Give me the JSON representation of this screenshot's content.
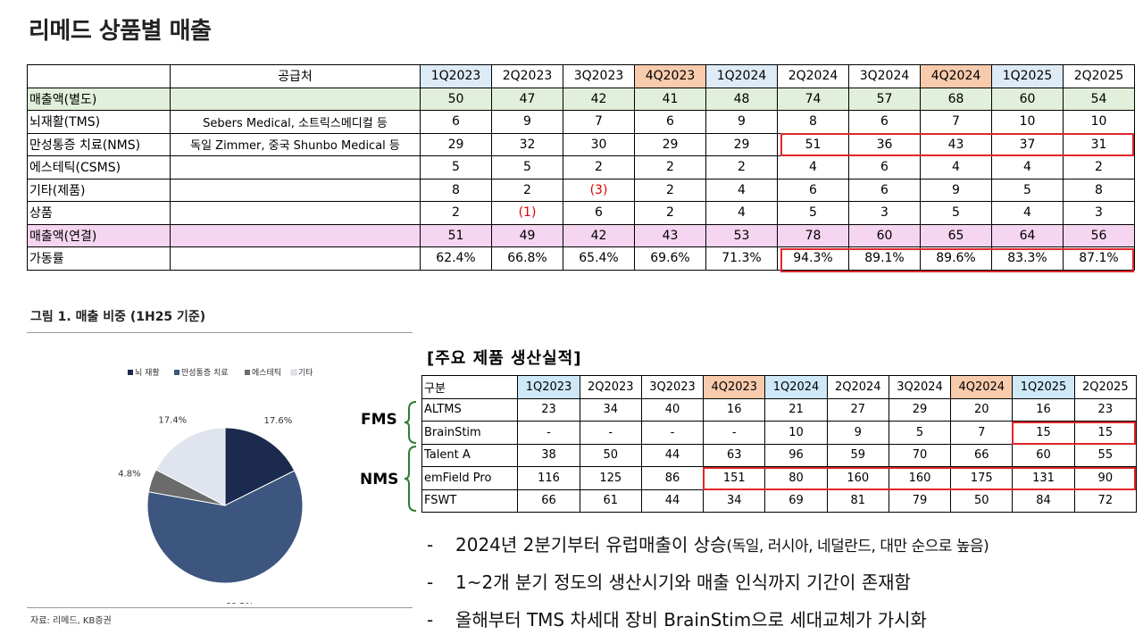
{
  "title": "리메드 상품별 매출",
  "main_table": {
    "header": {
      "label": "",
      "supplier": "공급처",
      "periods": [
        "1Q2023",
        "2Q2023",
        "3Q2023",
        "4Q2023",
        "1Q2024",
        "2Q2024",
        "3Q2024",
        "4Q2024",
        "1Q2025",
        "2Q2025"
      ]
    },
    "rows": [
      {
        "label": "매출액(별도)",
        "supplier": "",
        "values": [
          "50",
          "47",
          "42",
          "41",
          "48",
          "74",
          "57",
          "68",
          "60",
          "54"
        ]
      },
      {
        "label": "뇌재활(TMS)",
        "supplier": "Sebers Medical, 소트릭스메디컬 등",
        "values": [
          "6",
          "9",
          "7",
          "6",
          "9",
          "8",
          "6",
          "7",
          "10",
          "10"
        ]
      },
      {
        "label": "만성통증 치료(NMS)",
        "supplier": "독일 Zimmer, 중국 Shunbo Medical 등",
        "values": [
          "29",
          "32",
          "30",
          "29",
          "29",
          "51",
          "36",
          "43",
          "37",
          "31"
        ]
      },
      {
        "label": "에스테틱(CSMS)",
        "supplier": "",
        "values": [
          "5",
          "5",
          "2",
          "2",
          "2",
          "4",
          "6",
          "4",
          "4",
          "2"
        ]
      },
      {
        "label": "기타(제품)",
        "supplier": "",
        "values": [
          "8",
          "2",
          "(3)",
          "2",
          "4",
          "6",
          "6",
          "9",
          "5",
          "8"
        ]
      },
      {
        "label": "상품",
        "supplier": "",
        "values": [
          "2",
          "(1)",
          "6",
          "2",
          "4",
          "5",
          "3",
          "5",
          "4",
          "3"
        ]
      },
      {
        "label": "매출액(연결)",
        "supplier": "",
        "values": [
          "51",
          "49",
          "42",
          "43",
          "53",
          "78",
          "60",
          "65",
          "64",
          "56"
        ]
      },
      {
        "label": "가동률",
        "supplier": "",
        "values": [
          "62.4%",
          "66.8%",
          "65.4%",
          "69.6%",
          "71.3%",
          "94.3%",
          "89.1%",
          "89.6%",
          "83.3%",
          "87.1%"
        ]
      }
    ]
  },
  "figure": {
    "title": "그림 1. 매출 비중 (1H25 기준)",
    "source": "자료: 리메드, KB증권"
  },
  "chart_data": {
    "type": "pie",
    "title": "그림 1. 매출 비중 (1H25 기준)",
    "legend_position": "top",
    "series": [
      {
        "name": "뇌 재활",
        "value": 17.6,
        "label": "17.6%",
        "color": "#1b2a4e"
      },
      {
        "name": "만성통증 치료",
        "value": 60.2,
        "label": "60.2%",
        "color": "#3d5680"
      },
      {
        "name": "에스테틱",
        "value": 4.8,
        "label": "4.8%",
        "color": "#6b6b6b"
      },
      {
        "name": "기타",
        "value": 17.4,
        "label": "17.4%",
        "color": "#dfe4ee"
      }
    ]
  },
  "production": {
    "title": "[주요 제품 생산실적]",
    "header": {
      "label": "구분",
      "periods": [
        "1Q2023",
        "2Q2023",
        "3Q2023",
        "4Q2023",
        "1Q2024",
        "2Q2024",
        "3Q2024",
        "4Q2024",
        "1Q2025",
        "2Q2025"
      ]
    },
    "groups": {
      "fms": "FMS",
      "nms": "NMS"
    },
    "rows": [
      {
        "label": "ALTMS",
        "values": [
          "23",
          "34",
          "40",
          "16",
          "21",
          "27",
          "29",
          "20",
          "16",
          "23"
        ]
      },
      {
        "label": "BrainStim",
        "values": [
          "-",
          "-",
          "-",
          "-",
          "10",
          "9",
          "5",
          "7",
          "15",
          "15"
        ]
      },
      {
        "label": "Talent A",
        "values": [
          "38",
          "50",
          "44",
          "63",
          "96",
          "59",
          "70",
          "66",
          "60",
          "55"
        ]
      },
      {
        "label": "emField Pro",
        "values": [
          "116",
          "125",
          "86",
          "151",
          "80",
          "160",
          "160",
          "175",
          "131",
          "90"
        ]
      },
      {
        "label": "FSWT",
        "values": [
          "66",
          "61",
          "44",
          "34",
          "69",
          "81",
          "79",
          "50",
          "84",
          "72"
        ]
      }
    ]
  },
  "bullets": [
    {
      "dash": "-",
      "main": "2024년 2분기부터 유럽매출이 상승",
      "sub": "(독일, 러시아, 네덜란드, 대만 순으로 높음)"
    },
    {
      "dash": "-",
      "main": "1~2개 분기 정도의 생산시기와 매출 인식까지 기간이 존재함",
      "sub": ""
    },
    {
      "dash": "-",
      "main": "올해부터 TMS 차세대 장비 BrainStim으로 세대교체가 가시화",
      "sub": ""
    }
  ]
}
